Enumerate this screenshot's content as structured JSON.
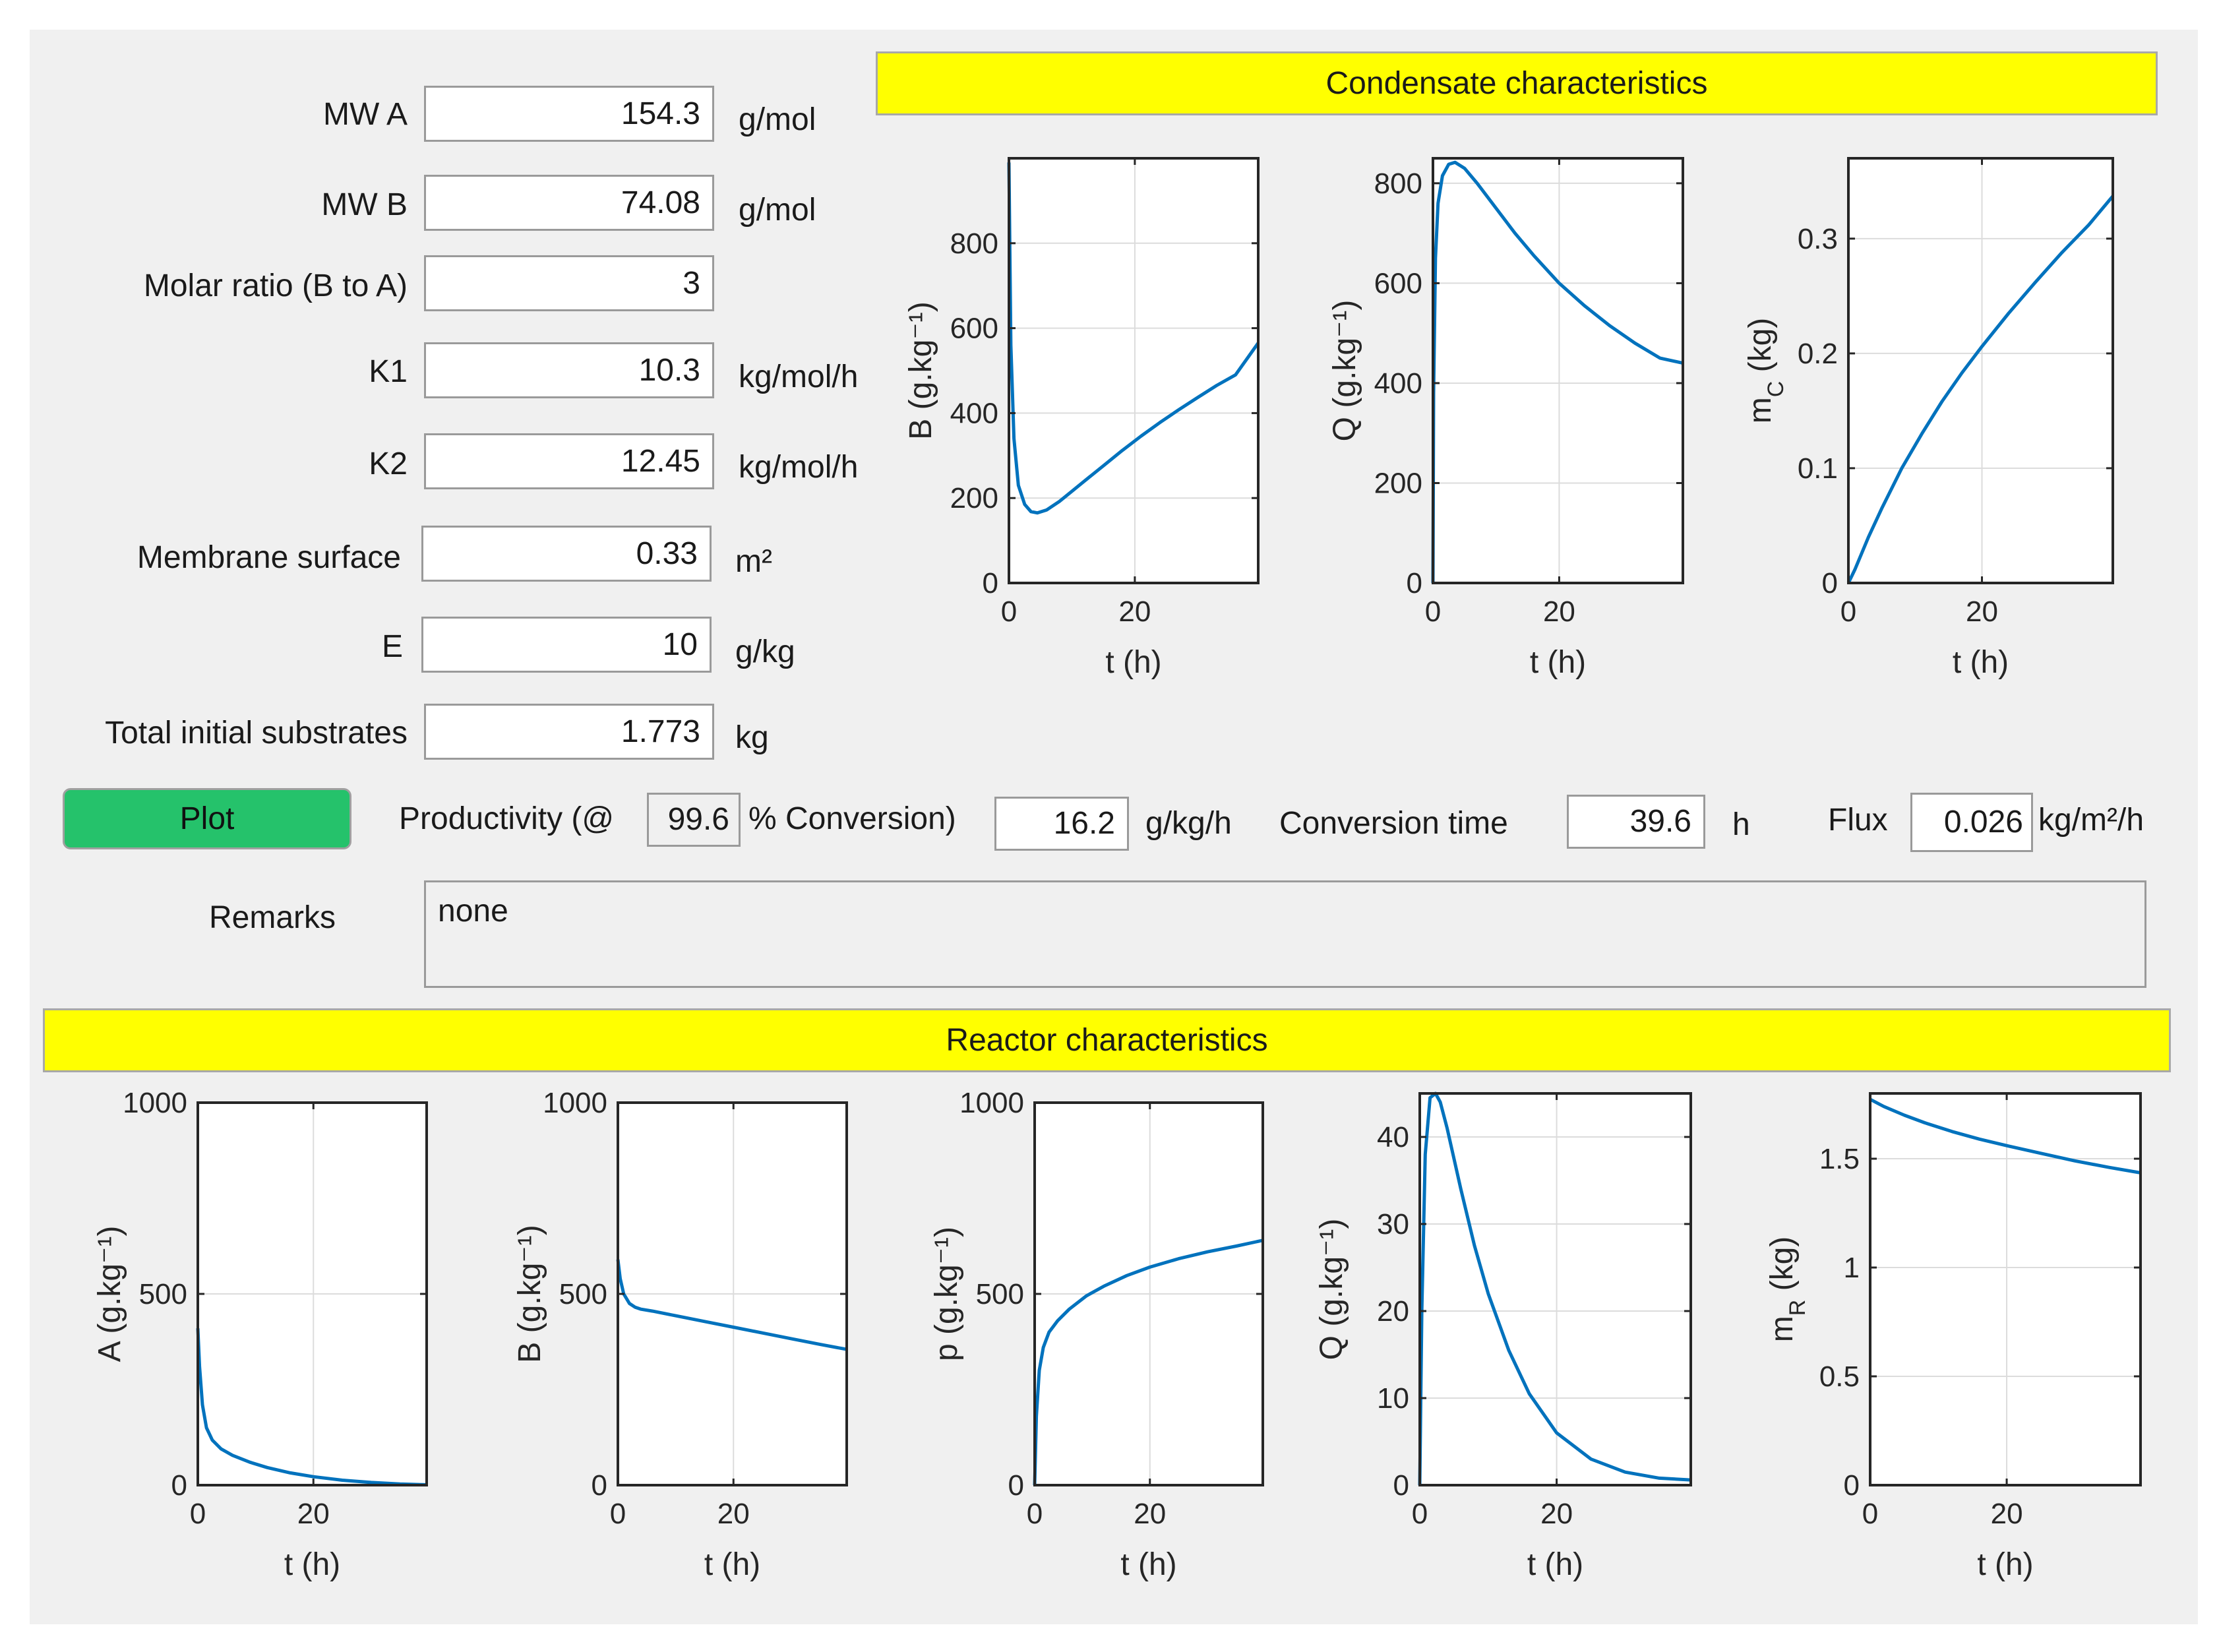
{
  "form": {
    "fields": [
      {
        "label": "MW A",
        "value": "154.3",
        "unit": "g/mol"
      },
      {
        "label": "MW B",
        "value": "74.08",
        "unit": "g/mol"
      },
      {
        "label": "Molar ratio (B to A)",
        "value": "3",
        "unit": ""
      },
      {
        "label": "K1",
        "value": "10.3",
        "unit": "kg/mol/h"
      },
      {
        "label": "K2",
        "value": "12.45",
        "unit": "kg/mol/h"
      },
      {
        "label": "Membrane surface",
        "value": "0.33",
        "unit": "m²"
      },
      {
        "label": "E",
        "value": "10",
        "unit": "g/kg"
      },
      {
        "label": "Total initial substrates",
        "value": "1.773",
        "unit": "kg"
      }
    ]
  },
  "actions": {
    "plot_label": "Plot"
  },
  "results": {
    "productivity_prefix": "Productivity (@",
    "conversion_percent": "99.6",
    "conversion_suffix": "% Conversion)",
    "productivity_value": "16.2",
    "productivity_unit": "g/kg/h",
    "conversion_time_label": "Conversion time",
    "conversion_time_value": "39.6",
    "conversion_time_unit": "h",
    "flux_label": "Flux",
    "flux_value": "0.026",
    "flux_unit": "kg/m²/h"
  },
  "remarks": {
    "label": "Remarks",
    "value": "none"
  },
  "sections": {
    "condensate_title": "Condensate characteristics",
    "reactor_title": "Reactor characteristics"
  },
  "colors": {
    "line": "#0072bd",
    "banner": "#ffff00",
    "button": "#25c26b",
    "panel": "#f0f0f0"
  },
  "chart_data": [
    {
      "id": "cond-b",
      "type": "line",
      "xlabel": "t (h)",
      "ylabel": "B (g.kg⁻¹)",
      "xlim": [
        0,
        39.6
      ],
      "ylim": [
        0,
        1000
      ],
      "xticks": [
        0,
        20
      ],
      "yticks": [
        0,
        200,
        400,
        600,
        800
      ],
      "x": [
        0,
        0.3,
        0.8,
        1.5,
        2.5,
        3.5,
        4.5,
        6,
        8,
        10,
        12,
        15,
        18,
        21,
        24,
        27,
        30,
        33,
        36,
        39.6
      ],
      "y": [
        990,
        560,
        340,
        230,
        185,
        168,
        165,
        172,
        192,
        216,
        240,
        276,
        312,
        346,
        378,
        408,
        437,
        465,
        490,
        565
      ]
    },
    {
      "id": "cond-q",
      "type": "line",
      "xlabel": "t (h)",
      "ylabel": "Q (g.kg⁻¹)",
      "xlim": [
        0,
        39.6
      ],
      "ylim": [
        0,
        850
      ],
      "xticks": [
        0,
        20
      ],
      "yticks": [
        0,
        200,
        400,
        600,
        800
      ],
      "x": [
        0,
        0.1,
        0.4,
        0.8,
        1.5,
        2.5,
        3.5,
        5,
        7,
        10,
        13,
        16,
        20,
        24,
        28,
        32,
        36,
        39.6
      ],
      "y": [
        0,
        380,
        650,
        760,
        815,
        838,
        842,
        830,
        800,
        750,
        700,
        655,
        600,
        555,
        515,
        480,
        450,
        440
      ]
    },
    {
      "id": "cond-mc",
      "type": "line",
      "xlabel": "t (h)",
      "ylabel": "m_C (kg)",
      "xlim": [
        0,
        39.6
      ],
      "ylim": [
        0,
        0.37
      ],
      "xticks": [
        0,
        20
      ],
      "yticks": [
        0,
        0.1,
        0.2,
        0.3
      ],
      "x": [
        0,
        1,
        3,
        5,
        8,
        11,
        14,
        17,
        20,
        24,
        28,
        32,
        36,
        39.6
      ],
      "y": [
        0,
        0.012,
        0.04,
        0.065,
        0.1,
        0.13,
        0.158,
        0.183,
        0.206,
        0.235,
        0.262,
        0.288,
        0.312,
        0.337
      ]
    },
    {
      "id": "reac-a",
      "type": "line",
      "xlabel": "t (h)",
      "ylabel": "A (g.kg⁻¹)",
      "xlim": [
        0,
        39.6
      ],
      "ylim": [
        0,
        1000
      ],
      "xticks": [
        0,
        20
      ],
      "yticks": [
        0,
        500,
        1000
      ],
      "x": [
        0,
        0.3,
        0.8,
        1.5,
        2.5,
        4,
        6,
        9,
        12,
        16,
        20,
        25,
        30,
        35,
        39.6
      ],
      "y": [
        410,
        310,
        210,
        150,
        118,
        95,
        78,
        60,
        46,
        32,
        22,
        13,
        7,
        3,
        1
      ]
    },
    {
      "id": "reac-b",
      "type": "line",
      "xlabel": "t (h)",
      "ylabel": "B (g.kg⁻¹)",
      "xlim": [
        0,
        39.6
      ],
      "ylim": [
        0,
        1000
      ],
      "xticks": [
        0,
        20
      ],
      "yticks": [
        0,
        500,
        1000
      ],
      "x": [
        0,
        0.4,
        1,
        2,
        3,
        4,
        6,
        10,
        15,
        20,
        25,
        30,
        35,
        39.6
      ],
      "y": [
        590,
        540,
        500,
        475,
        465,
        460,
        455,
        443,
        428,
        413,
        398,
        383,
        368,
        355
      ]
    },
    {
      "id": "reac-p",
      "type": "line",
      "xlabel": "t (h)",
      "ylabel": "p (g.kg⁻¹)",
      "xlim": [
        0,
        39.6
      ],
      "ylim": [
        0,
        1000
      ],
      "xticks": [
        0,
        20
      ],
      "yticks": [
        0,
        500,
        1000
      ],
      "x": [
        0,
        0.3,
        0.8,
        1.5,
        2.5,
        4,
        6,
        9,
        12,
        16,
        20,
        25,
        30,
        35,
        39.6
      ],
      "y": [
        0,
        180,
        300,
        360,
        400,
        430,
        460,
        495,
        520,
        548,
        570,
        592,
        610,
        625,
        640
      ]
    },
    {
      "id": "reac-q",
      "type": "line",
      "xlabel": "t (h)",
      "ylabel": "Q (g.kg⁻¹)",
      "xlim": [
        0,
        39.6
      ],
      "ylim": [
        0,
        45
      ],
      "xticks": [
        0,
        20
      ],
      "yticks": [
        0,
        10,
        20,
        30,
        40
      ],
      "x": [
        0,
        0.3,
        0.8,
        1.5,
        2.3,
        3,
        4,
        5,
        6,
        8,
        10,
        13,
        16,
        20,
        25,
        30,
        35,
        39.6
      ],
      "y": [
        0,
        20,
        38,
        44.5,
        45,
        44,
        41,
        37.5,
        34,
        27.5,
        22,
        15.5,
        10.5,
        6,
        3,
        1.5,
        0.8,
        0.6
      ]
    },
    {
      "id": "reac-mr",
      "type": "line",
      "xlabel": "t (h)",
      "ylabel": "m_R (kg)",
      "xlim": [
        0,
        39.6
      ],
      "ylim": [
        0,
        1.8
      ],
      "xticks": [
        0,
        20
      ],
      "yticks": [
        0,
        0.5,
        1,
        1.5
      ],
      "x": [
        0,
        2,
        5,
        8,
        12,
        16,
        20,
        25,
        30,
        35,
        39.6
      ],
      "y": [
        1.773,
        1.74,
        1.7,
        1.665,
        1.625,
        1.59,
        1.56,
        1.525,
        1.49,
        1.46,
        1.435
      ]
    }
  ]
}
